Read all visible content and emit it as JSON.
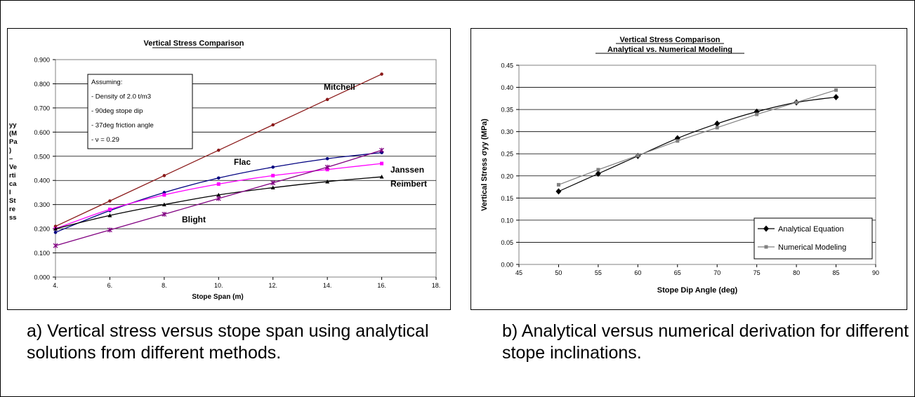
{
  "chart_data": [
    {
      "type": "line",
      "title": "Vertical Stress Comparison",
      "xlabel": "Stope Span (m)",
      "ylabel": "σyy (MPa) - Vertical Stress",
      "ylabel_lines": [
        "yy",
        "(M",
        "Pa",
        ")",
        "–",
        "Ve",
        "rti",
        "ca",
        "l",
        "St",
        "re",
        "ss"
      ],
      "xlim": [
        4,
        18
      ],
      "ylim": [
        0,
        0.9
      ],
      "x_ticks": [
        "4.",
        "6.",
        "8.",
        "10.",
        "12.",
        "14.",
        "16.",
        "18."
      ],
      "y_ticks": [
        "0.000",
        "0.100",
        "0.200",
        "0.300",
        "0.400",
        "0.500",
        "0.600",
        "0.700",
        "0.800",
        "0.900"
      ],
      "grid": "horizontal",
      "annotation_lines": [
        "Assuming:",
        "- Density of 2.0 t/m3",
        "- 90deg stope dip",
        "- 37deg friction angle",
        "-  ν = 0.29"
      ],
      "series": [
        {
          "name": "Mitchell",
          "color": "#8b1a1a",
          "marker": "circle",
          "x": [
            4,
            6,
            8,
            10,
            12,
            14,
            16
          ],
          "y": [
            0.21,
            0.315,
            0.42,
            0.525,
            0.63,
            0.735,
            0.84
          ]
        },
        {
          "name": "Flac",
          "color": "#000080",
          "marker": "circle",
          "x": [
            4,
            6,
            8,
            10,
            12,
            14,
            16
          ],
          "y": [
            0.185,
            0.275,
            0.35,
            0.41,
            0.455,
            0.49,
            0.515
          ]
        },
        {
          "name": "Janssen",
          "color": "#ff00ff",
          "marker": "square",
          "x": [
            4,
            6,
            8,
            10,
            12,
            14,
            16
          ],
          "y": [
            0.2,
            0.28,
            0.34,
            0.385,
            0.42,
            0.445,
            0.47
          ]
        },
        {
          "name": "Reimbert",
          "color": "#000000",
          "marker": "triangle",
          "x": [
            4,
            6,
            8,
            10,
            12,
            14,
            16
          ],
          "y": [
            0.2,
            0.255,
            0.3,
            0.34,
            0.37,
            0.395,
            0.415
          ]
        },
        {
          "name": "Blight",
          "color": "#800080",
          "marker": "cross",
          "x": [
            4,
            6,
            8,
            10,
            12,
            14,
            16
          ],
          "y": [
            0.13,
            0.195,
            0.26,
            0.325,
            0.39,
            0.455,
            0.525
          ]
        }
      ]
    },
    {
      "type": "line",
      "title": "Vertical Stress Comparison",
      "subtitle": "Analytical vs. Numerical Modeling",
      "xlabel": "Stope Dip Angle (deg)",
      "ylabel": "Vertical Stress σyy (MPa)",
      "xlim": [
        45,
        90
      ],
      "ylim": [
        0,
        0.45
      ],
      "x_ticks": [
        "45",
        "50",
        "55",
        "60",
        "65",
        "70",
        "75",
        "80",
        "85",
        "90"
      ],
      "y_ticks": [
        "0.00",
        "0.05",
        "0.10",
        "0.15",
        "0.20",
        "0.25",
        "0.30",
        "0.35",
        "0.40",
        "0.45"
      ],
      "grid": "horizontal",
      "legend": "bottom-right",
      "series": [
        {
          "name": "Analytical Equation",
          "color": "#000000",
          "marker": "diamond",
          "x": [
            50,
            55,
            60,
            65,
            70,
            75,
            80,
            85
          ],
          "y": [
            0.165,
            0.205,
            0.245,
            0.285,
            0.318,
            0.345,
            0.366,
            0.378
          ]
        },
        {
          "name": "Numerical Modeling",
          "color": "#808080",
          "marker": "square",
          "x": [
            50,
            55,
            60,
            65,
            70,
            75,
            80,
            85
          ],
          "y": [
            0.18,
            0.214,
            0.246,
            0.279,
            0.309,
            0.339,
            0.366,
            0.394
          ]
        }
      ]
    }
  ],
  "captions": {
    "a": "a) Vertical stress versus stope span using analytical solutions from different methods.",
    "b": "b) Analytical versus numerical derivation for different stope inclinations."
  }
}
